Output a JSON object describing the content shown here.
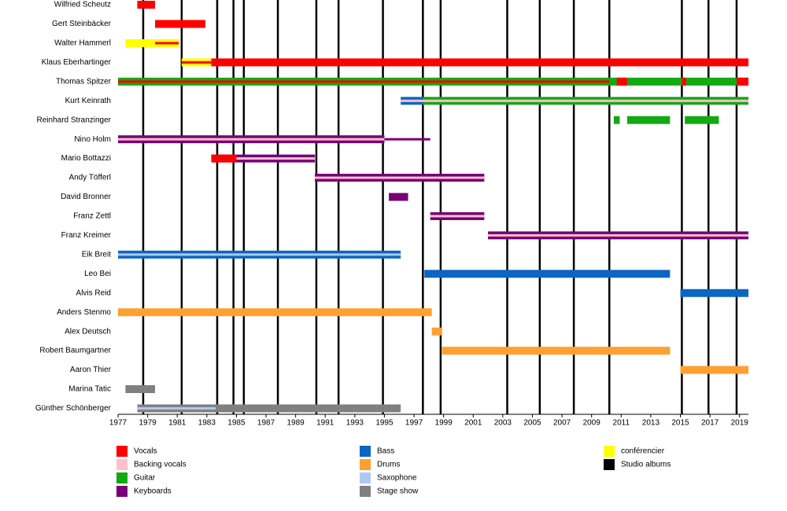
{
  "chart_data": {
    "type": "timeline",
    "xlim": [
      1977,
      2019.6
    ],
    "xticks": [
      1977,
      1979,
      1981,
      1983,
      1985,
      1987,
      1989,
      1991,
      1993,
      1995,
      1997,
      1999,
      2001,
      2003,
      2005,
      2007,
      2009,
      2011,
      2013,
      2015,
      2017,
      2019
    ],
    "series": [
      {
        "name": "Vocals",
        "color": "#ff0000"
      },
      {
        "name": "Backing vocals",
        "color": "#ffc0cb"
      },
      {
        "name": "Guitar",
        "color": "#11aa11"
      },
      {
        "name": "Keyboards",
        "color": "#770077"
      },
      {
        "name": "Bass",
        "color": "#0a66c2"
      },
      {
        "name": "Drums",
        "color": "#ffa030"
      },
      {
        "name": "Saxophone",
        "color": "#b0c8f0"
      },
      {
        "name": "Stage show",
        "color": "#808080"
      },
      {
        "name": "conférencier",
        "color": "#ffff00"
      }
    ],
    "albums": {
      "name": "Studio albums",
      "color": "#000000",
      "values": [
        1978.7,
        1981.3,
        1983.7,
        1984.8,
        1985.5,
        1987.8,
        1990.4,
        1991.9,
        1994.9,
        1997.6,
        1998.8,
        2003.3,
        2005.5,
        2007.8,
        2010.2,
        2015.1,
        2016.9,
        2018.8
      ]
    },
    "members": [
      {
        "name": "Wilfried Scheutz",
        "bars": [
          {
            "role": "Vocals",
            "start": 1978.3,
            "end": 1979.5
          }
        ]
      },
      {
        "name": "Gert Steinbäcker",
        "bars": [
          {
            "role": "Vocals",
            "start": 1979.5,
            "end": 1982.9
          }
        ]
      },
      {
        "name": "Walter Hammerl",
        "bars": [
          {
            "role": "conférencier",
            "start": 1977.5,
            "end": 1981.1
          },
          {
            "role": "Vocals",
            "start": 1979.5,
            "end": 1981.1,
            "thin": true
          }
        ]
      },
      {
        "name": "Klaus Eberhartinger",
        "bars": [
          {
            "role": "conférencier",
            "start": 1981.3,
            "end": 1983.3
          },
          {
            "role": "Vocals",
            "start": 1981.3,
            "end": 1983.3,
            "thin": true
          },
          {
            "role": "Vocals",
            "start": 1983.3,
            "end": 2019.6
          }
        ]
      },
      {
        "name": "Thomas Spitzer",
        "bars": [
          {
            "role": "Guitar",
            "start": 1977,
            "end": 2019.6
          },
          {
            "role": "Vocals",
            "start": 1977,
            "end": 2010.2,
            "thin": true
          },
          {
            "role": "Vocals",
            "start": 2010.7,
            "end": 2011.4
          },
          {
            "role": "Vocals",
            "start": 2015.1,
            "end": 2015.4
          },
          {
            "role": "Vocals",
            "start": 2018.8,
            "end": 2019.6
          }
        ]
      },
      {
        "name": "Kurt Keinrath",
        "bars": [
          {
            "role": "Bass",
            "start": 1996.1,
            "end": 1997.6
          },
          {
            "role": "Guitar",
            "start": 1997.6,
            "end": 2019.6
          },
          {
            "role": "Backing vocals",
            "start": 1996.1,
            "end": 2019.6,
            "thin": true
          }
        ]
      },
      {
        "name": "Reinhard Stranzinger",
        "bars": [
          {
            "role": "Guitar",
            "start": 2010.5,
            "end": 2010.9
          },
          {
            "role": "Guitar",
            "start": 2011.4,
            "end": 2014.3
          },
          {
            "role": "Guitar",
            "start": 2015.3,
            "end": 2017.6
          }
        ]
      },
      {
        "name": "Nino Holm",
        "bars": [
          {
            "role": "Keyboards",
            "start": 1977,
            "end": 1995
          },
          {
            "role": "Backing vocals",
            "start": 1977,
            "end": 1995,
            "thin": true
          },
          {
            "role": "Keyboards",
            "start": 1995,
            "end": 1998.1,
            "thin": true
          }
        ]
      },
      {
        "name": "Mario Bottazzi",
        "bars": [
          {
            "role": "Keyboards",
            "start": 1983.3,
            "end": 1990.3
          },
          {
            "role": "Backing vocals",
            "start": 1983.3,
            "end": 1990.3,
            "thin": true
          },
          {
            "role": "Vocals",
            "start": 1983.3,
            "end": 1985
          }
        ]
      },
      {
        "name": "Andy Töfferl",
        "bars": [
          {
            "role": "Keyboards",
            "start": 1990.3,
            "end": 2001.75
          },
          {
            "role": "Backing vocals",
            "start": 1990.3,
            "end": 2001.75,
            "thin": true
          }
        ]
      },
      {
        "name": "David Bronner",
        "bars": [
          {
            "role": "Keyboards",
            "start": 1995.3,
            "end": 1996.6
          }
        ]
      },
      {
        "name": "Franz Zettl",
        "bars": [
          {
            "role": "Keyboards",
            "start": 1998.1,
            "end": 2001.75
          },
          {
            "role": "Backing vocals",
            "start": 1998.1,
            "end": 2001.75,
            "thin": true
          }
        ]
      },
      {
        "name": "Franz Kreimer",
        "bars": [
          {
            "role": "Keyboards",
            "start": 2002,
            "end": 2019.6
          },
          {
            "role": "Backing vocals",
            "start": 2002,
            "end": 2019.6,
            "thin": true
          }
        ]
      },
      {
        "name": "Eik Breit",
        "bars": [
          {
            "role": "Bass",
            "start": 1977,
            "end": 1996.1
          },
          {
            "role": "Saxophone",
            "start": 1977,
            "end": 1996.1,
            "thin": true
          }
        ]
      },
      {
        "name": "Leo Bei",
        "bars": [
          {
            "role": "Bass",
            "start": 1997.7,
            "end": 2014.3
          }
        ]
      },
      {
        "name": "Alvis Reid",
        "bars": [
          {
            "role": "Bass",
            "start": 2015,
            "end": 2019.6
          }
        ]
      },
      {
        "name": "Anders Stenmo",
        "bars": [
          {
            "role": "Drums",
            "start": 1977,
            "end": 1998.2
          }
        ]
      },
      {
        "name": "Alex Deutsch",
        "bars": [
          {
            "role": "Drums",
            "start": 1998.2,
            "end": 1998.9
          }
        ]
      },
      {
        "name": "Robert Baumgartner",
        "bars": [
          {
            "role": "Drums",
            "start": 1998.9,
            "end": 2014.3
          }
        ]
      },
      {
        "name": "Aaron Thier",
        "bars": [
          {
            "role": "Drums",
            "start": 2015,
            "end": 2019.6
          }
        ]
      },
      {
        "name": "Marina Tatic",
        "bars": [
          {
            "role": "Stage show",
            "start": 1977.5,
            "end": 1979.5
          }
        ]
      },
      {
        "name": "Günther Schönberger",
        "bars": [
          {
            "role": "Stage show",
            "start": 1978.3,
            "end": 1996.1
          },
          {
            "role": "Saxophone",
            "start": 1978.3,
            "end": 1983.6,
            "thin": true
          }
        ]
      }
    ]
  }
}
